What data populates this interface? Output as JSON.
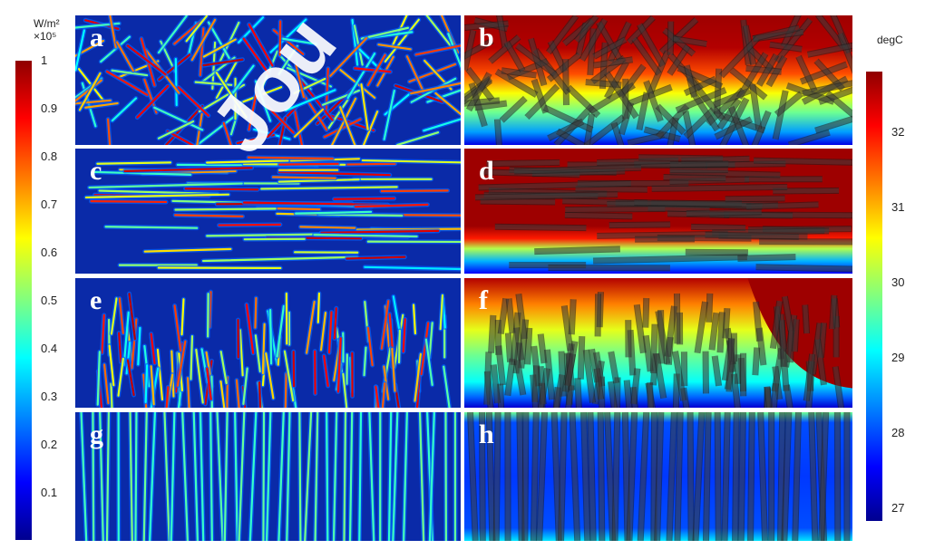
{
  "left_colorbar": {
    "unit": "W/m²",
    "scale": "×10⁵",
    "ticks": [
      "1",
      "0.9",
      "0.8",
      "0.7",
      "0.6",
      "0.5",
      "0.4",
      "0.3",
      "0.2",
      "0.1"
    ]
  },
  "right_colorbar": {
    "unit": "degC",
    "ticks": [
      "32",
      "31",
      "30",
      "29",
      "28",
      "27"
    ]
  },
  "panels": {
    "a": {
      "label": "a",
      "kind": "flux",
      "layout": "random"
    },
    "b": {
      "label": "b",
      "kind": "temp",
      "layout": "random"
    },
    "c": {
      "label": "c",
      "kind": "flux",
      "layout": "horizontal"
    },
    "d": {
      "label": "d",
      "kind": "temp",
      "layout": "horizontal"
    },
    "e": {
      "label": "e",
      "kind": "flux",
      "layout": "vertical-random"
    },
    "f": {
      "label": "f",
      "kind": "temp",
      "layout": "vertical-random"
    },
    "g": {
      "label": "g",
      "kind": "flux",
      "layout": "vertical-aligned"
    },
    "h": {
      "label": "h",
      "kind": "temp",
      "layout": "vertical-aligned"
    }
  },
  "watermark": "Jou",
  "colors": {
    "jet_dark_blue": "#00008f",
    "jet_blue": "#0020ff",
    "jet_cyan": "#00ffff",
    "jet_yellow": "#ffff00",
    "jet_orange": "#ff8000",
    "jet_dark_red": "#8f0000",
    "flux_background": "#0a2aa8",
    "divider": "#ffffff"
  }
}
